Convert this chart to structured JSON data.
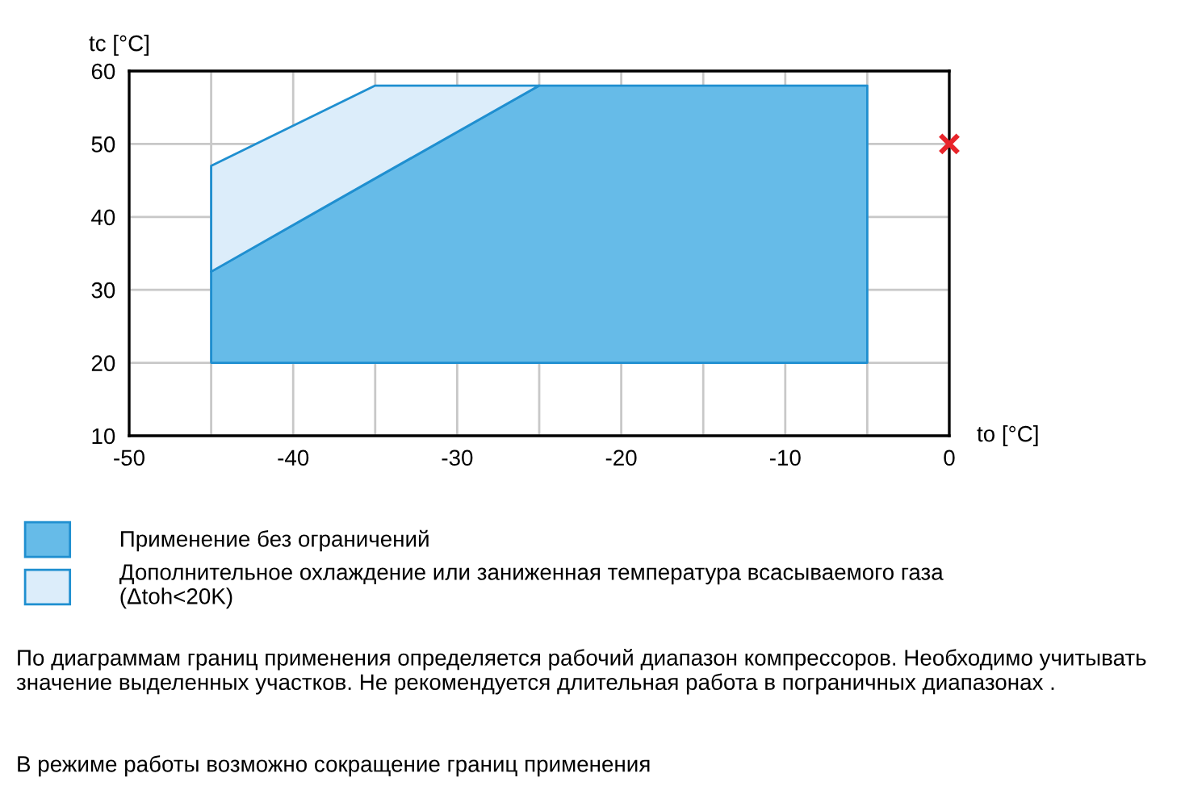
{
  "chart_data": {
    "type": "area",
    "xlabel": "to [°C]",
    "ylabel": "tc [°C]",
    "xlim": [
      -50,
      0
    ],
    "ylim": [
      10,
      60
    ],
    "xticks": [
      -50,
      {
        "value": -45,
        "label": null
      },
      -40,
      {
        "value": -35,
        "label": null
      },
      -30,
      {
        "value": -25,
        "label": null
      },
      -20,
      {
        "value": -15,
        "label": null
      },
      -10,
      {
        "value": -5,
        "label": null
      },
      0
    ],
    "yticks": [
      10,
      20,
      30,
      40,
      50,
      60
    ],
    "grid": true,
    "legend": "bottom",
    "series": [
      {
        "name": "Применение без ограничений",
        "color": "#66bbe8",
        "x": [
          -45,
          -45,
          -25,
          -5,
          -5
        ],
        "values": [
          20,
          32.5,
          58,
          58,
          20
        ]
      },
      {
        "name": "Дополнительное охлаждение или заниженная температура всасываемого газа\n(Δtoh<20K)",
        "color": "#dcedfa",
        "x": [
          -45,
          -45,
          -35,
          -25,
          -35
        ],
        "values": [
          32.5,
          47,
          58,
          58,
          45.3
        ]
      },
      {
        "type": "scatter",
        "color": "#e8242a",
        "marker": "cross",
        "x": [
          0
        ],
        "values": [
          50
        ]
      }
    ],
    "annotations": [
      "По диаграммам границ применения определяется рабочий диапазон компрессоров. Необходимо учитывать значение выделенных участков. Не рекомендуется длительная работа в пограничных диапазонах .",
      "В режиме работы возможно сокращение границ применения"
    ]
  }
}
